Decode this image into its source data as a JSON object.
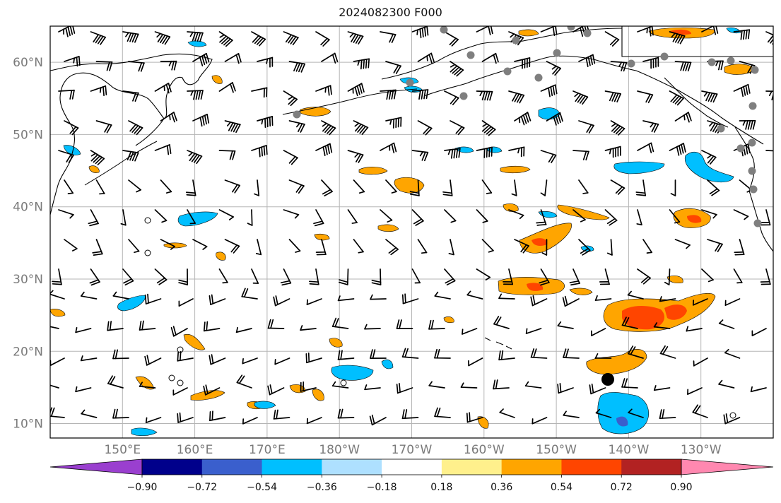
{
  "title": "2024082300 F000",
  "map": {
    "lat_ticks": [
      {
        "value": 60,
        "label": "60°N"
      },
      {
        "value": 50,
        "label": "50°N"
      },
      {
        "value": 40,
        "label": "40°N"
      },
      {
        "value": 30,
        "label": "30°N"
      },
      {
        "value": 20,
        "label": "20°N"
      },
      {
        "value": 10,
        "label": "10°N"
      }
    ],
    "lon_ticks": [
      {
        "value": 150,
        "label": "150°E"
      },
      {
        "value": 160,
        "label": "160°E"
      },
      {
        "value": 170,
        "label": "170°E"
      },
      {
        "value": 180,
        "label": "180°W"
      },
      {
        "value": 190,
        "label": "170°W"
      },
      {
        "value": 200,
        "label": "160°W"
      },
      {
        "value": 210,
        "label": "150°W"
      },
      {
        "value": 220,
        "label": "140°W"
      },
      {
        "value": 230,
        "label": "130°W"
      }
    ],
    "extent": {
      "lon_min": 140,
      "lon_max": 240,
      "lat_min": 8,
      "lat_max": 65
    },
    "gridlines": true,
    "symbols": "wind barbs, station dots, coastlines"
  },
  "colorbar": {
    "levels": [
      "-0.90",
      "-0.72",
      "-0.54",
      "-0.36",
      "-0.18",
      "0.18",
      "0.36",
      "0.54",
      "0.72",
      "0.90"
    ],
    "colors": [
      "#9a3fcf",
      "#00008b",
      "#3a5fcd",
      "#00bfff",
      "#aee0ff",
      "#ffffff",
      "#fff08c",
      "#ffa500",
      "#ff4500",
      "#b22222",
      "#ff88b0"
    ],
    "extend": "both"
  },
  "colors": {
    "positive_strong": "#ff4500",
    "positive": "#ffa500",
    "negative": "#00bfff",
    "negative_strong": "#3a5fcd"
  }
}
